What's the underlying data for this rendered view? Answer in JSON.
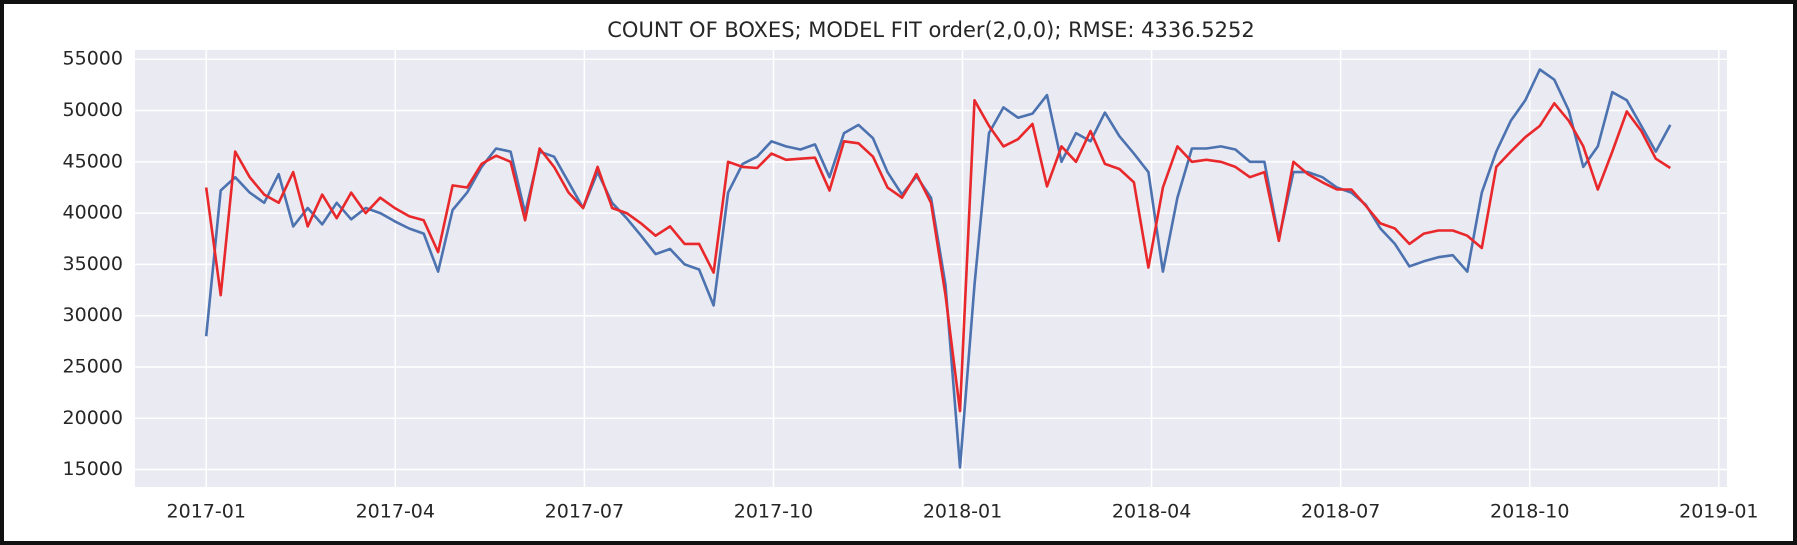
{
  "chart_data": {
    "type": "line",
    "title": "COUNT OF BOXES; MODEL FIT order(2,0,0); RMSE: 4336.5252",
    "x": [
      0,
      0.23,
      0.46,
      0.69,
      0.92,
      1.15,
      1.38,
      1.61,
      1.84,
      2.07,
      2.3,
      2.53,
      2.76,
      2.99,
      3.22,
      3.45,
      3.68,
      3.91,
      4.14,
      4.37,
      4.6,
      4.83,
      5.06,
      5.29,
      5.52,
      5.75,
      5.98,
      6.21,
      6.44,
      6.67,
      6.9,
      7.13,
      7.36,
      7.59,
      7.82,
      8.05,
      8.28,
      8.51,
      8.74,
      8.97,
      9.2,
      9.43,
      9.66,
      9.89,
      10.12,
      10.35,
      10.58,
      10.81,
      11.04,
      11.27,
      11.5,
      11.73,
      11.96,
      12.19,
      12.42,
      12.65,
      12.88,
      13.11,
      13.34,
      13.57,
      13.8,
      14.03,
      14.26,
      14.49,
      14.72,
      14.95,
      15.18,
      15.41,
      15.64,
      15.87,
      16.1,
      16.33,
      16.56,
      16.79,
      17.02,
      17.25,
      17.48,
      17.71,
      17.94,
      18.17,
      18.4,
      18.63,
      18.86,
      19.09,
      19.32,
      19.55,
      19.78,
      20.01,
      20.24,
      20.47,
      20.7,
      20.93,
      21.16,
      21.39,
      21.62,
      21.85,
      22.08,
      22.31,
      22.54,
      22.77,
      23.0,
      23.23
    ],
    "series": [
      {
        "color": "#4c72b0",
        "values": [
          28000,
          42200,
          43500,
          42000,
          41000,
          43800,
          38700,
          40500,
          38900,
          41000,
          39400,
          40500,
          40000,
          39200,
          38500,
          38000,
          34300,
          40300,
          42000,
          44500,
          46300,
          46000,
          40000,
          46000,
          45500,
          43000,
          40500,
          44000,
          41000,
          39500,
          37800,
          36000,
          36500,
          35000,
          34500,
          31000,
          42000,
          44800,
          45500,
          47000,
          46500,
          46200,
          46700,
          43500,
          47800,
          48600,
          47300,
          44000,
          41800,
          43600,
          41500,
          33000,
          15200,
          33000,
          47800,
          50300,
          49300,
          49700,
          51500,
          45000,
          47800,
          47000,
          49800,
          47500,
          45800,
          44000,
          34300,
          41500,
          46300,
          46300,
          46500,
          46200,
          45000,
          45000,
          37500,
          44000,
          44000,
          43500,
          42500,
          42000,
          40800,
          38500,
          37000,
          34800,
          35300,
          35700,
          35900,
          34300,
          42000,
          46000,
          49000,
          51000,
          54000,
          53000,
          50000,
          44500,
          46500,
          51800,
          51000,
          48500,
          46000,
          48600
        ]
      },
      {
        "color": "#e8282b",
        "values": [
          42500,
          32000,
          46000,
          43500,
          41800,
          41000,
          44000,
          38700,
          41800,
          39500,
          42000,
          40000,
          41500,
          40500,
          39700,
          39300,
          36200,
          42700,
          42500,
          44800,
          45600,
          45000,
          39300,
          46300,
          44500,
          42000,
          40500,
          44500,
          40500,
          40000,
          39000,
          37800,
          38700,
          37000,
          37000,
          34200,
          45000,
          44500,
          44400,
          45800,
          45200,
          45300,
          45400,
          42200,
          47000,
          46800,
          45500,
          42500,
          41500,
          43800,
          41000,
          32000,
          20700,
          51000,
          48500,
          46500,
          47200,
          48700,
          42600,
          46500,
          45000,
          48000,
          44800,
          44300,
          43000,
          34700,
          42500,
          46500,
          45000,
          45200,
          45000,
          44500,
          43500,
          44000,
          37300,
          45000,
          43800,
          43000,
          42300,
          42300,
          40700,
          39000,
          38500,
          37000,
          38000,
          38300,
          38300,
          37800,
          36600,
          44500,
          46000,
          47400,
          48500,
          50700,
          49000,
          46500,
          42300,
          46000,
          49900,
          48000,
          45300,
          44400
        ]
      }
    ],
    "xlim": [
      -1.13,
      24.13
    ],
    "xticks": [
      {
        "value": 0,
        "label": "2017-01"
      },
      {
        "value": 3,
        "label": "2017-04"
      },
      {
        "value": 6,
        "label": "2017-07"
      },
      {
        "value": 9,
        "label": "2017-10"
      },
      {
        "value": 12,
        "label": "2018-01"
      },
      {
        "value": 15,
        "label": "2018-04"
      },
      {
        "value": 18,
        "label": "2018-07"
      },
      {
        "value": 21,
        "label": "2018-10"
      },
      {
        "value": 24,
        "label": "2019-01"
      }
    ],
    "ylim": [
      13300,
      55900
    ],
    "yticks": [
      15000,
      20000,
      25000,
      30000,
      35000,
      40000,
      45000,
      50000,
      55000
    ],
    "grid": true
  }
}
